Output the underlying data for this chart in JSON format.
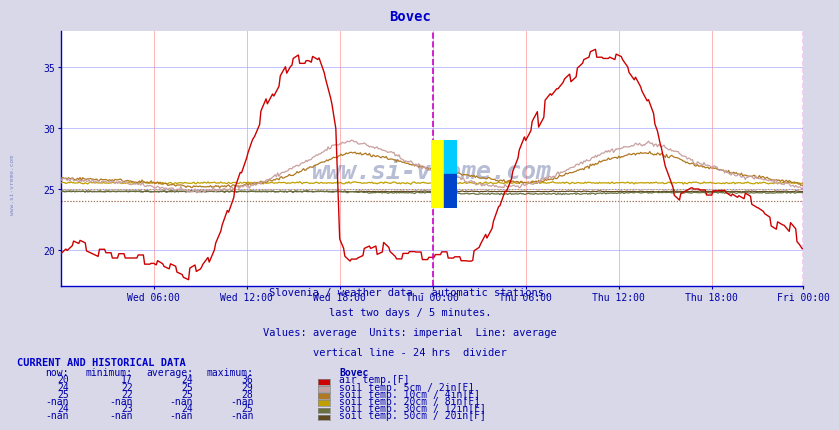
{
  "title": "Bovec",
  "title_color": "#0000cc",
  "bg_color": "#d8d8e8",
  "plot_bg_color": "#ffffff",
  "grid_color_v": "#ffaaaa",
  "grid_color_h": "#aaaaff",
  "xlabel_color": "#0000aa",
  "ylabel_color": "#0000aa",
  "x_tick_labels": [
    "Wed 06:00",
    "Wed 12:00",
    "Wed 18:00",
    "Thu 00:00",
    "Thu 06:00",
    "Thu 12:00",
    "Thu 18:00",
    "Fri 00:00"
  ],
  "x_tick_positions": [
    72,
    144,
    216,
    288,
    360,
    432,
    504,
    575
  ],
  "y_ticks": [
    20,
    25,
    30,
    35
  ],
  "ylim": [
    17,
    38
  ],
  "n_points": 576,
  "air_temp_color": "#cc0000",
  "soil5_color": "#c8a0a0",
  "soil10_color": "#b07820",
  "soil20_color": "#c0a000",
  "soil30_color": "#687040",
  "soil50_color": "#604820",
  "avg_air_color": "#ff6666",
  "avg_soil10_color": "#c09040",
  "avg_soil30_color": "#808060",
  "divider_color": "#cc00cc",
  "watermark": "www.si-vreme.com",
  "side_text": "www.si-vreme.com",
  "subtitle1": "Slovenia / weather data - automatic stations.",
  "subtitle2": "last two days / 5 minutes.",
  "subtitle3": "Values: average  Units: imperial  Line: average",
  "subtitle4": "vertical line - 24 hrs  divider",
  "subtitle_color": "#0000aa",
  "table_header": "CURRENT AND HISTORICAL DATA",
  "col_headers": [
    "now:",
    "minimum:",
    "average:",
    "maximum:",
    "Bovec"
  ],
  "rows": [
    {
      "now": "20",
      "min": "17",
      "avg": "24",
      "max": "36",
      "color": "#cc0000",
      "label": "air temp.[F]"
    },
    {
      "now": "24",
      "min": "22",
      "avg": "25",
      "max": "29",
      "color": "#c0a0a0",
      "label": "soil temp. 5cm / 2in[F]"
    },
    {
      "now": "25",
      "min": "22",
      "avg": "25",
      "max": "28",
      "color": "#b07820",
      "label": "soil temp. 10cm / 4in[F]"
    },
    {
      "now": "-nan",
      "min": "-nan",
      "avg": "-nan",
      "max": "-nan",
      "color": "#c0a000",
      "label": "soil temp. 20cm / 8in[F]"
    },
    {
      "now": "24",
      "min": "23",
      "avg": "24",
      "max": "25",
      "color": "#687040",
      "label": "soil temp. 30cm / 12in[F]"
    },
    {
      "now": "-nan",
      "min": "-nan",
      "avg": "-nan",
      "max": "-nan",
      "color": "#604820",
      "label": "soil temp. 50cm / 20in[F]"
    }
  ]
}
